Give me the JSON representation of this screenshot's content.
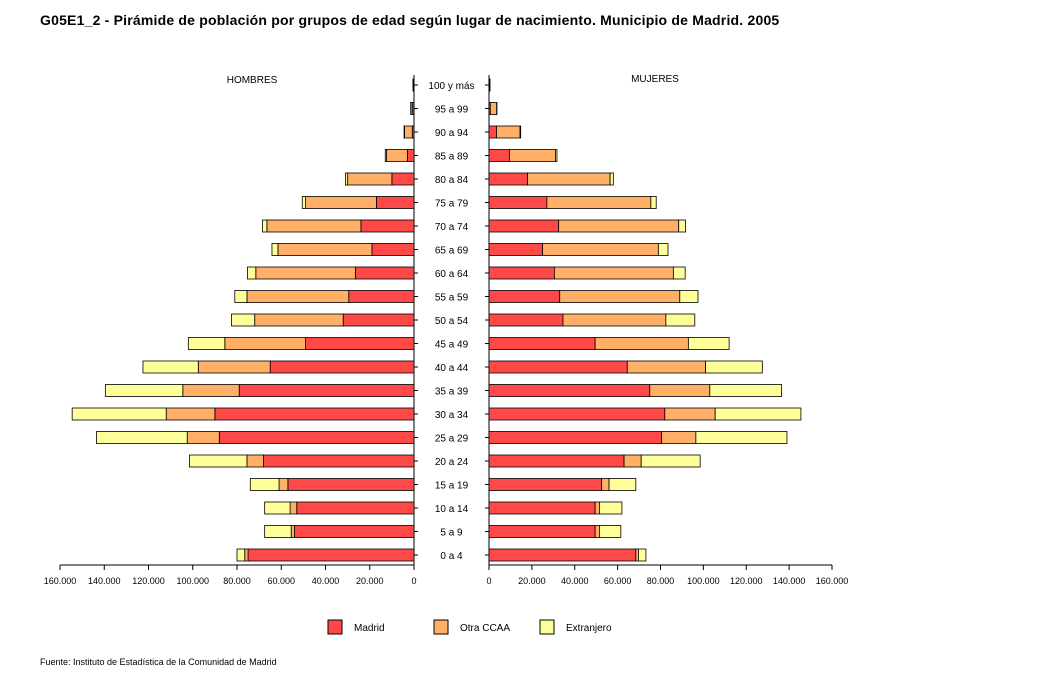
{
  "chart_data": {
    "type": "bar",
    "title": "G05E1_2 - Pirámide de población por grupos de edad según lugar de nacimiento. Municipio de Madrid. 2005",
    "source": "Fuente: Instituto de Estadística de la Comunidad de Madrid",
    "left_label": "HOMBRES",
    "right_label": "MUJERES",
    "categories": [
      "100 y más",
      "95 a 99",
      "90 a 94",
      "85 a 89",
      "80 a 84",
      "75 a 79",
      "70 a 74",
      "65 a 69",
      "60 a 64",
      "55 a 59",
      "50 a 54",
      "45 a 49",
      "40 a  44",
      "35 a 39",
      "30 a 34",
      "25 a 29",
      "20 a 24",
      "15 a 19",
      "10 a 14",
      "5 a 9",
      "0 a 4"
    ],
    "xlim": [
      0,
      160000
    ],
    "left_ticks": [
      "160.000",
      "140.000",
      "120.000",
      "100.000",
      "80.000",
      "60.000",
      "40.000",
      "20.000",
      "0"
    ],
    "right_ticks": [
      "0",
      "20.000",
      "40.000",
      "60.000",
      "80.000",
      "100.000",
      "120.000",
      "140.000",
      "160.000"
    ],
    "colors": {
      "Madrid": "#ff4848",
      "Otra CCAA": "#ffb066",
      "Extranjero": "#ffff99"
    },
    "series": [
      {
        "name": "Madrid",
        "hombres": [
          100,
          600,
          800,
          3000,
          10000,
          17000,
          24000,
          19000,
          26500,
          29500,
          32000,
          49000,
          65000,
          79000,
          90000,
          88000,
          68000,
          57000,
          53000,
          54000,
          75000
        ],
        "mujeres": [
          100,
          600,
          3500,
          9500,
          18000,
          27000,
          32500,
          25000,
          30500,
          33000,
          34500,
          49500,
          64500,
          75000,
          82000,
          80500,
          63000,
          52500,
          49500,
          49500,
          68500
        ]
      },
      {
        "name": "Otra CCAA",
        "hombres": [
          300,
          800,
          3500,
          9500,
          20000,
          32000,
          42500,
          42500,
          45000,
          46000,
          40000,
          36500,
          32500,
          25500,
          22000,
          14500,
          7500,
          4000,
          3000,
          1500,
          1500
        ],
        "mujeres": [
          300,
          3000,
          11000,
          21500,
          38500,
          48500,
          56000,
          54000,
          55500,
          56000,
          48000,
          43500,
          36500,
          28000,
          23500,
          16000,
          8000,
          3500,
          2000,
          2000,
          1200
        ]
      },
      {
        "name": "Extranjero",
        "hombres": [
          50,
          100,
          200,
          500,
          1000,
          1500,
          2000,
          2700,
          3800,
          5500,
          10500,
          16500,
          25000,
          35000,
          42500,
          41000,
          26000,
          13000,
          11500,
          12000,
          3500
        ],
        "mujeres": [
          50,
          100,
          300,
          700,
          1500,
          2500,
          3200,
          4500,
          5500,
          8500,
          13500,
          19000,
          26500,
          33500,
          40000,
          42500,
          27500,
          12500,
          10500,
          10000,
          3500
        ]
      }
    ]
  }
}
